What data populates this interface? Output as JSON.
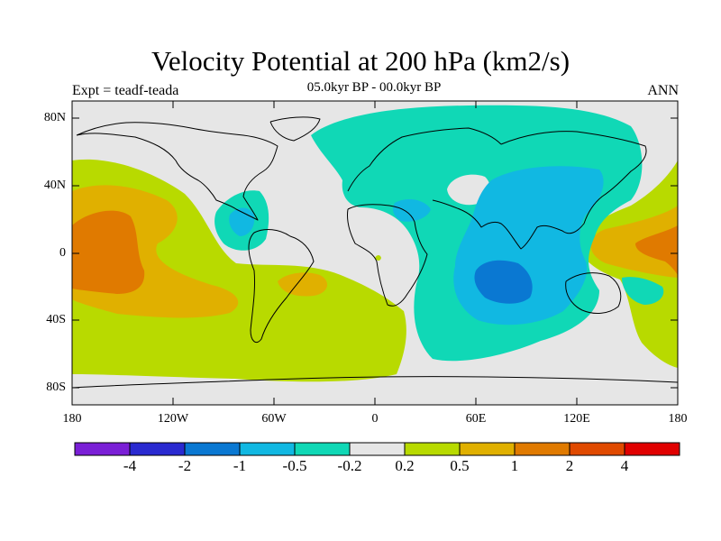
{
  "title": "Velocity Potential at 200 hPa (km2/s)",
  "subtitle": "05.0kyr BP - 00.0kyr BP",
  "left_label": "Expt = teadf-teada",
  "right_label": "ANN",
  "y_ticks": [
    "80N",
    "40N",
    "0",
    "40S",
    "80S"
  ],
  "x_ticks": [
    "180",
    "120W",
    "60W",
    "0",
    "60E",
    "120E",
    "180"
  ],
  "colorbar": {
    "colors": [
      "#7a1fd6",
      "#2a2ad0",
      "#0a78d2",
      "#11b8e2",
      "#10d8b6",
      "#e6e6e6",
      "#b8da00",
      "#e0b000",
      "#e07a00",
      "#e04a00",
      "#e00000"
    ],
    "labels": [
      "-4",
      "-2",
      "-1",
      "-0.5",
      "-0.2",
      "0.2",
      "0.5",
      "1",
      "2",
      "4"
    ]
  },
  "map_colors": {
    "background": "#e6e6e6",
    "level_m02": "#10d8b6",
    "level_m05": "#11b8e2",
    "level_m1": "#0a78d2",
    "level_p02": "#b8da00",
    "level_p05": "#e0b000",
    "level_p1": "#e07a00",
    "coastline": "#000000"
  }
}
